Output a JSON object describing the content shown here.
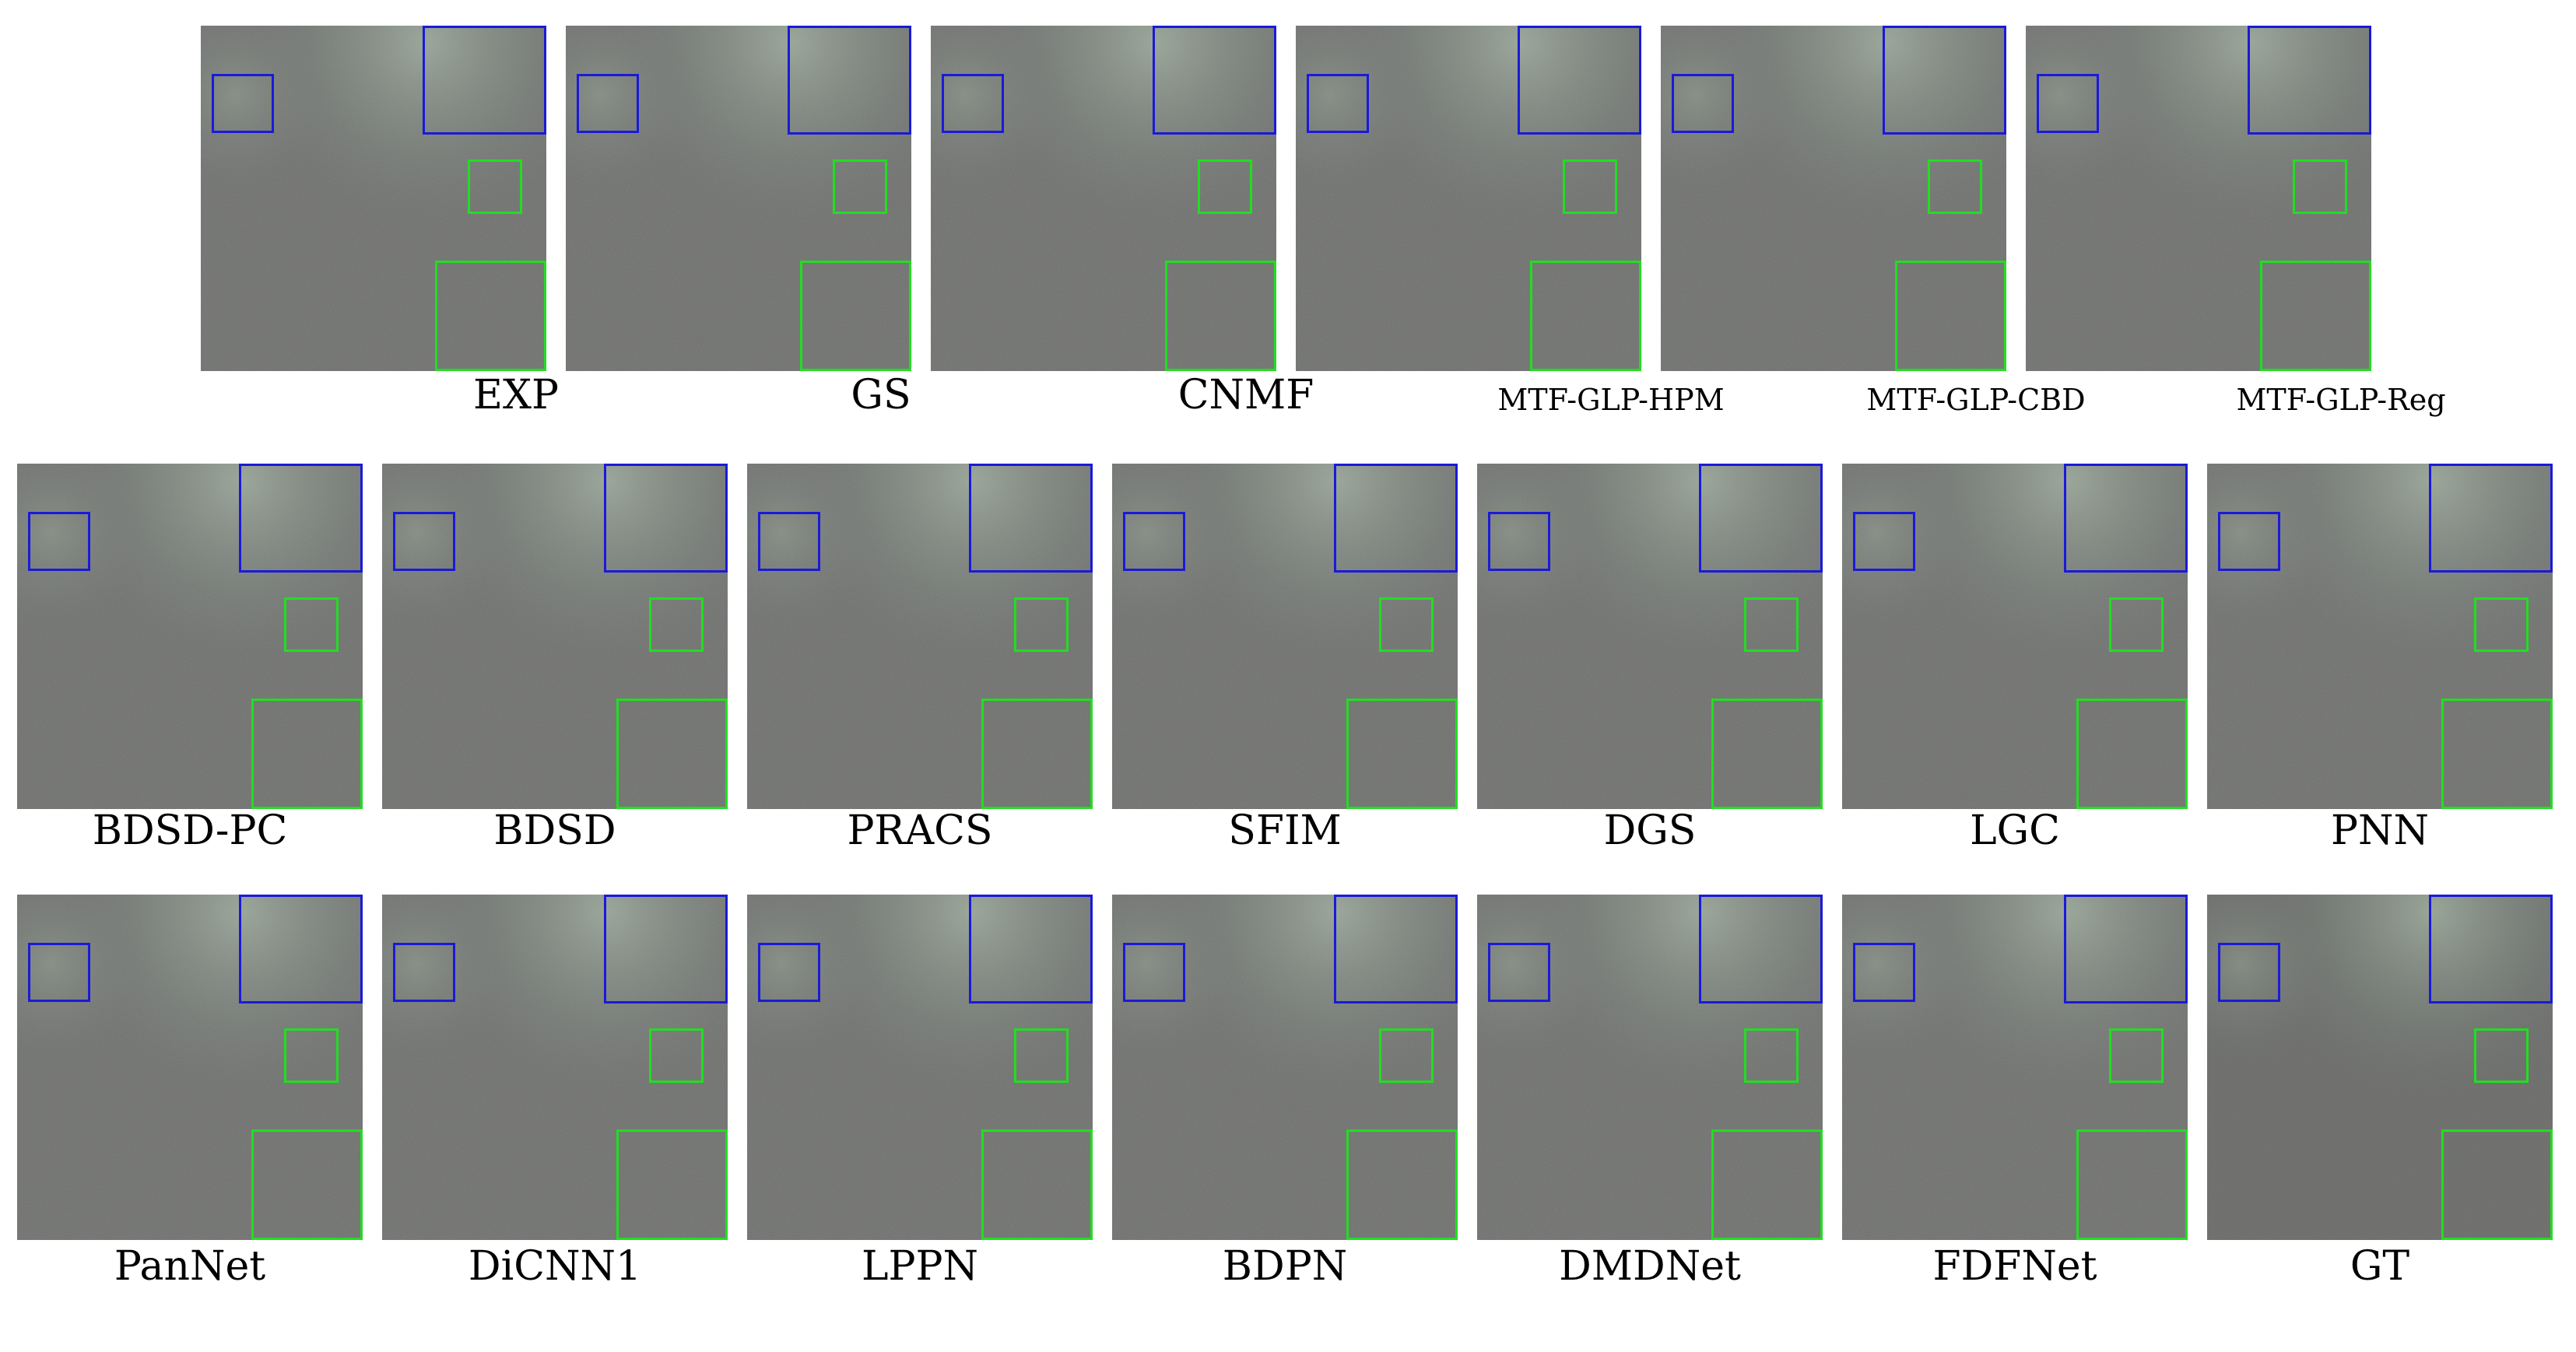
{
  "figure": {
    "rows": [
      {
        "panels": [
          "EXP",
          "GS",
          "CNMF",
          "MTF-GLP-HPM",
          "MTF-GLP-CBD",
          "MTF-GLP-Reg"
        ]
      },
      {
        "panels": [
          "BDSD-PC",
          "BDSD",
          "PRACS",
          "SFIM",
          "DGS",
          "LGC",
          "PNN"
        ]
      },
      {
        "panels": [
          "PanNet",
          "DiCNN1",
          "LPPN",
          "BDPN",
          "DMDNet",
          "FDFNet",
          "GT"
        ]
      }
    ],
    "colors": {
      "background": "#6c6d6b",
      "roi_blue": "#1a1ad8",
      "roi_green": "#22dd22"
    }
  }
}
